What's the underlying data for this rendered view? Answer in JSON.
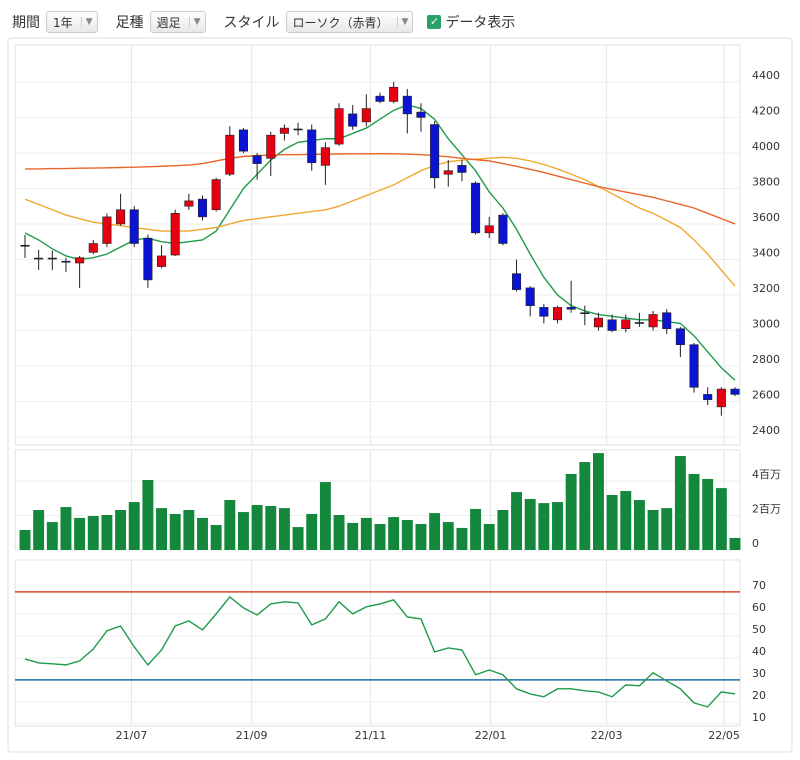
{
  "toolbar": {
    "period_label": "期間",
    "period": "1年",
    "bar_label": "足種",
    "bar": "週足",
    "style_label": "スタイル",
    "style": "ローソク（赤青）",
    "show_data": "データ表示"
  },
  "chart_data": [
    {
      "type": "candlestick",
      "categories": [
        null,
        null,
        null,
        null,
        null,
        null,
        null,
        null,
        null,
        null,
        null,
        null,
        null,
        null,
        null,
        null,
        null,
        null,
        null,
        null,
        null,
        null,
        null,
        null,
        null,
        null,
        null,
        null,
        null,
        null,
        null,
        null,
        null,
        null,
        null,
        null,
        null,
        null,
        null,
        null,
        null,
        null,
        null,
        null,
        null,
        null,
        null,
        null,
        null,
        null,
        null,
        null,
        null
      ],
      "open": [
        3480,
        3408,
        3408,
        3390,
        3380,
        3440,
        3490,
        3600,
        3680,
        3520,
        3360,
        3425,
        3700,
        3740,
        3680,
        3880,
        4130,
        3985,
        3970,
        4110,
        4135,
        4130,
        3930,
        4050,
        4220,
        4175,
        4320,
        4290,
        4320,
        4230,
        4160,
        3880,
        3930,
        3830,
        3550,
        3650,
        3320,
        3240,
        3130,
        3060,
        3130,
        3100,
        3020,
        3060,
        3010,
        3045,
        3020,
        3100,
        3010,
        2920,
        2640,
        2570,
        2670
      ],
      "high": [
        3538,
        3454,
        3450,
        3410,
        3420,
        3510,
        3660,
        3770,
        3700,
        3540,
        3480,
        3680,
        3770,
        3760,
        3860,
        4150,
        4140,
        4000,
        4120,
        4160,
        4170,
        4160,
        4060,
        4280,
        4270,
        4330,
        4340,
        4400,
        4360,
        4280,
        4180,
        3960,
        3960,
        3840,
        3640,
        3660,
        3400,
        3250,
        3150,
        3140,
        3280,
        3140,
        3100,
        3090,
        3090,
        3100,
        3110,
        3120,
        3020,
        2930,
        2680,
        2680,
        2680
      ],
      "low": [
        3408,
        3341,
        3340,
        3330,
        3240,
        3430,
        3470,
        3590,
        3470,
        3240,
        3350,
        3420,
        3680,
        3620,
        3670,
        3870,
        4000,
        3850,
        3870,
        4070,
        4100,
        3900,
        3820,
        4040,
        4130,
        4150,
        4280,
        4280,
        4110,
        4120,
        3800,
        3810,
        3840,
        3540,
        3520,
        3480,
        3220,
        3080,
        3040,
        3040,
        3100,
        3030,
        3000,
        2990,
        2990,
        3020,
        3000,
        2980,
        2850,
        2650,
        2580,
        2520,
        2630
      ],
      "close": [
        3480,
        3408,
        3408,
        3386,
        3410,
        3490,
        3640,
        3680,
        3490,
        3285,
        3420,
        3660,
        3730,
        3640,
        3850,
        4100,
        4010,
        3940,
        4100,
        4140,
        4135,
        3945,
        4030,
        4250,
        4150,
        4250,
        4290,
        4370,
        4220,
        4200,
        3860,
        3900,
        3890,
        3550,
        3590,
        3490,
        3230,
        3140,
        3080,
        3130,
        3120,
        3100,
        3070,
        3000,
        3060,
        3045,
        3090,
        3010,
        2920,
        2680,
        2610,
        2670,
        2640
      ],
      "up_color": "#e50012",
      "down_color": "#0a14d2",
      "wick_color": "#222222",
      "lines": [
        {
          "color": "#1f9b4a",
          "values": [
            3550,
            3510,
            3460,
            3420,
            3400,
            3410,
            3430,
            3470,
            3510,
            3520,
            3500,
            3490,
            3500,
            3510,
            3560,
            3680,
            3800,
            3880,
            3960,
            4020,
            4060,
            4070,
            4080,
            4080,
            4110,
            4140,
            4190,
            4240,
            4270,
            4250,
            4190,
            4080,
            3990,
            3900,
            3780,
            3690,
            3570,
            3430,
            3300,
            3200,
            3140,
            3110,
            3090,
            3080,
            3070,
            3060,
            3060,
            3050,
            3040,
            2970,
            2880,
            2790,
            2720
          ]
        },
        {
          "color": "#f0a830",
          "values": [
            3740,
            3710,
            3680,
            3650,
            3630,
            3610,
            3600,
            3590,
            3580,
            3570,
            3560,
            3560,
            3560,
            3570,
            3580,
            3600,
            3620,
            3630,
            3640,
            3650,
            3660,
            3670,
            3680,
            3700,
            3730,
            3760,
            3790,
            3820,
            3860,
            3900,
            3930,
            3950,
            3960,
            3965,
            3970,
            3975,
            3970,
            3955,
            3935,
            3910,
            3880,
            3850,
            3810,
            3770,
            3730,
            3690,
            3660,
            3620,
            3580,
            3510,
            3430,
            3340,
            3250
          ]
        },
        {
          "color": "#e8652a",
          "values": [
            3910,
            3910,
            3912,
            3912,
            3914,
            3915,
            3916,
            3918,
            3920,
            3922,
            3925,
            3928,
            3932,
            3940,
            3955,
            3970,
            3980,
            3985,
            3988,
            3990,
            3990,
            3992,
            3993,
            3994,
            3995,
            3995,
            3996,
            3995,
            3993,
            3990,
            3985,
            3978,
            3970,
            3962,
            3955,
            3940,
            3925,
            3908,
            3890,
            3870,
            3850,
            3830,
            3810,
            3795,
            3780,
            3765,
            3750,
            3730,
            3710,
            3690,
            3660,
            3630,
            3600
          ]
        }
      ],
      "ylim": [
        2355,
        4608
      ],
      "yticks": [
        2400,
        2600,
        2800,
        3000,
        3200,
        3400,
        3600,
        3800,
        4000,
        4200,
        4400
      ],
      "grid": true
    },
    {
      "type": "bar",
      "color": "#13873c",
      "values": [
        1160000,
        2320000,
        1620000,
        2490000,
        1860000,
        1970000,
        2030000,
        2320000,
        2780000,
        4060000,
        2430000,
        2090000,
        2320000,
        1860000,
        1450000,
        2900000,
        2200000,
        2610000,
        2550000,
        2430000,
        1330000,
        2090000,
        3940000,
        2030000,
        1570000,
        1860000,
        1510000,
        1910000,
        1740000,
        1510000,
        2140000,
        1620000,
        1280000,
        2380000,
        1510000,
        2320000,
        3360000,
        2960000,
        2720000,
        2780000,
        4410000,
        5100000,
        5620000,
        3190000,
        3420000,
        2900000,
        2320000,
        2430000,
        5450000,
        4410000,
        4120000,
        3590000,
        700000
      ],
      "ylim": [
        0,
        5800000
      ],
      "yticks": [
        0,
        {
          "value": 2000000,
          "label": "2百万"
        },
        {
          "value": 4000000,
          "label": "4百万"
        }
      ],
      "grid": true
    },
    {
      "type": "line",
      "color": "#1f9b4a",
      "values": [
        39.5,
        37.7,
        37.3,
        36.8,
        38.6,
        44,
        52.3,
        54.5,
        45,
        36.8,
        43.6,
        54.5,
        56.8,
        52.7,
        60,
        67.7,
        62.7,
        59.5,
        64.5,
        65.5,
        65,
        55,
        57.7,
        65.5,
        60,
        63.2,
        64.5,
        66.4,
        58.6,
        57.7,
        42.7,
        44.5,
        43.6,
        32.3,
        34.5,
        32.3,
        25.9,
        23.6,
        22.3,
        25.9,
        25.9,
        25,
        24.5,
        22.3,
        27.7,
        27.3,
        33.2,
        29.5,
        25.9,
        19.5,
        17.7,
        24.5,
        23.6
      ],
      "reference_lines": [
        {
          "value": 70,
          "color": "#d9432a"
        },
        {
          "value": 30,
          "color": "#1f6fa8"
        }
      ],
      "ylim": [
        9,
        84.5
      ],
      "yticks": [
        10,
        20,
        30,
        40,
        50,
        60,
        70
      ],
      "grid": true,
      "xticks": [
        {
          "value": 7.8,
          "label": "21/07"
        },
        {
          "value": 16.6,
          "label": "21/09"
        },
        {
          "value": 25.3,
          "label": "21/11"
        },
        {
          "value": 34.1,
          "label": "22/01"
        },
        {
          "value": 42.6,
          "label": "22/03"
        },
        {
          "value": 51.2,
          "label": "22/05"
        }
      ]
    }
  ]
}
